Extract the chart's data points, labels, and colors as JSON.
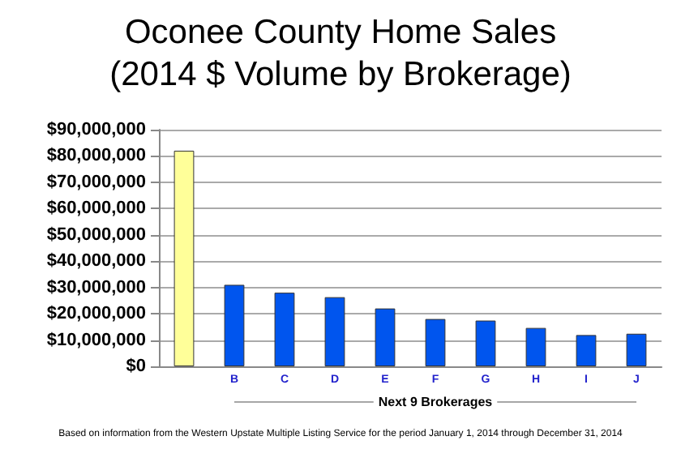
{
  "chart_data": {
    "type": "bar",
    "title": "Oconee County Home Sales\n(2014 $ Volume by Brokerage)",
    "categories": [
      null,
      "B",
      "C",
      "D",
      "E",
      "F",
      "G",
      "H",
      "I",
      "J"
    ],
    "values": [
      82000000,
      31000000,
      28000000,
      26300000,
      22000000,
      18000000,
      17400000,
      14600000,
      11900000,
      12400000
    ],
    "colors": [
      "#ffff99",
      "#0055ee",
      "#0055ee",
      "#0055ee",
      "#0055ee",
      "#0055ee",
      "#0055ee",
      "#0055ee",
      "#0055ee",
      "#0055ee"
    ],
    "ylim": [
      0,
      90000000
    ],
    "yticks": [
      {
        "value": 0,
        "label": "$0"
      },
      {
        "value": 10000000,
        "label": "$10,000,000"
      },
      {
        "value": 20000000,
        "label": "$20,000,000"
      },
      {
        "value": 30000000,
        "label": "$30,000,000"
      },
      {
        "value": 40000000,
        "label": "$40,000,000"
      },
      {
        "value": 50000000,
        "label": "$50,000,000"
      },
      {
        "value": 60000000,
        "label": "$60,000,000"
      },
      {
        "value": 70000000,
        "label": "$70,000,000"
      },
      {
        "value": 80000000,
        "label": "$80,000,000"
      },
      {
        "value": 90000000,
        "label": "$90,000,000"
      }
    ],
    "grid": "y",
    "annotations": [
      "Next 9 Brokerages",
      "Based on information from the Western Upstate Multiple Listing Service for the period January 1, 2014 through December 31, 2014"
    ]
  }
}
